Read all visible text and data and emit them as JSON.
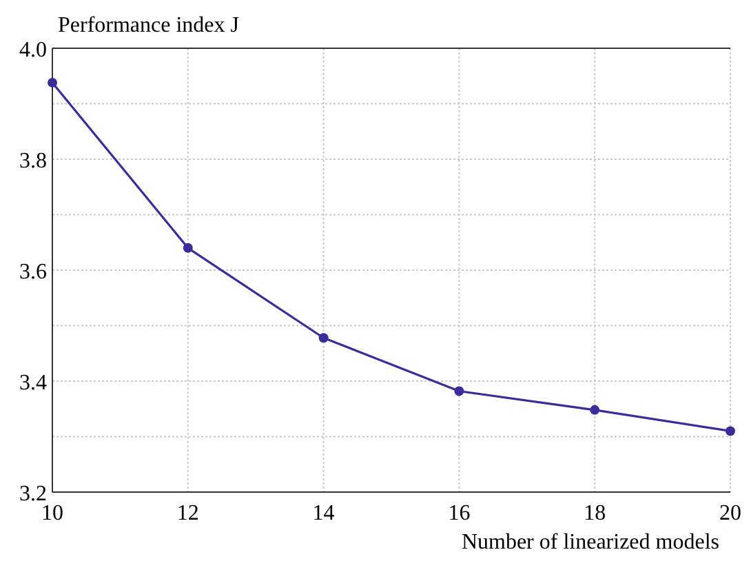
{
  "chart_data": {
    "type": "line",
    "ylabel": "Performance index J",
    "xlabel": "Number of linearized models",
    "x": [
      10,
      12,
      14,
      16,
      18,
      20
    ],
    "series": [
      {
        "color": "#3a2d9a",
        "values": [
          3.938,
          3.64,
          3.478,
          3.382,
          3.348,
          3.31
        ]
      }
    ],
    "xlim": [
      10,
      20
    ],
    "xticks": [
      10,
      12,
      14,
      16,
      18,
      20
    ],
    "ylim": [
      3.2,
      4.0
    ],
    "yticks": [
      3.2,
      {
        "value": 3.3,
        "label": null
      },
      3.4,
      {
        "value": 3.5,
        "label": null
      },
      3.6,
      {
        "value": 3.7,
        "label": null
      },
      3.8,
      {
        "value": 3.9,
        "label": null
      },
      {
        "value": 4,
        "label": "4.0"
      }
    ],
    "grid": true,
    "marker": "circle",
    "line_style": "solid"
  }
}
